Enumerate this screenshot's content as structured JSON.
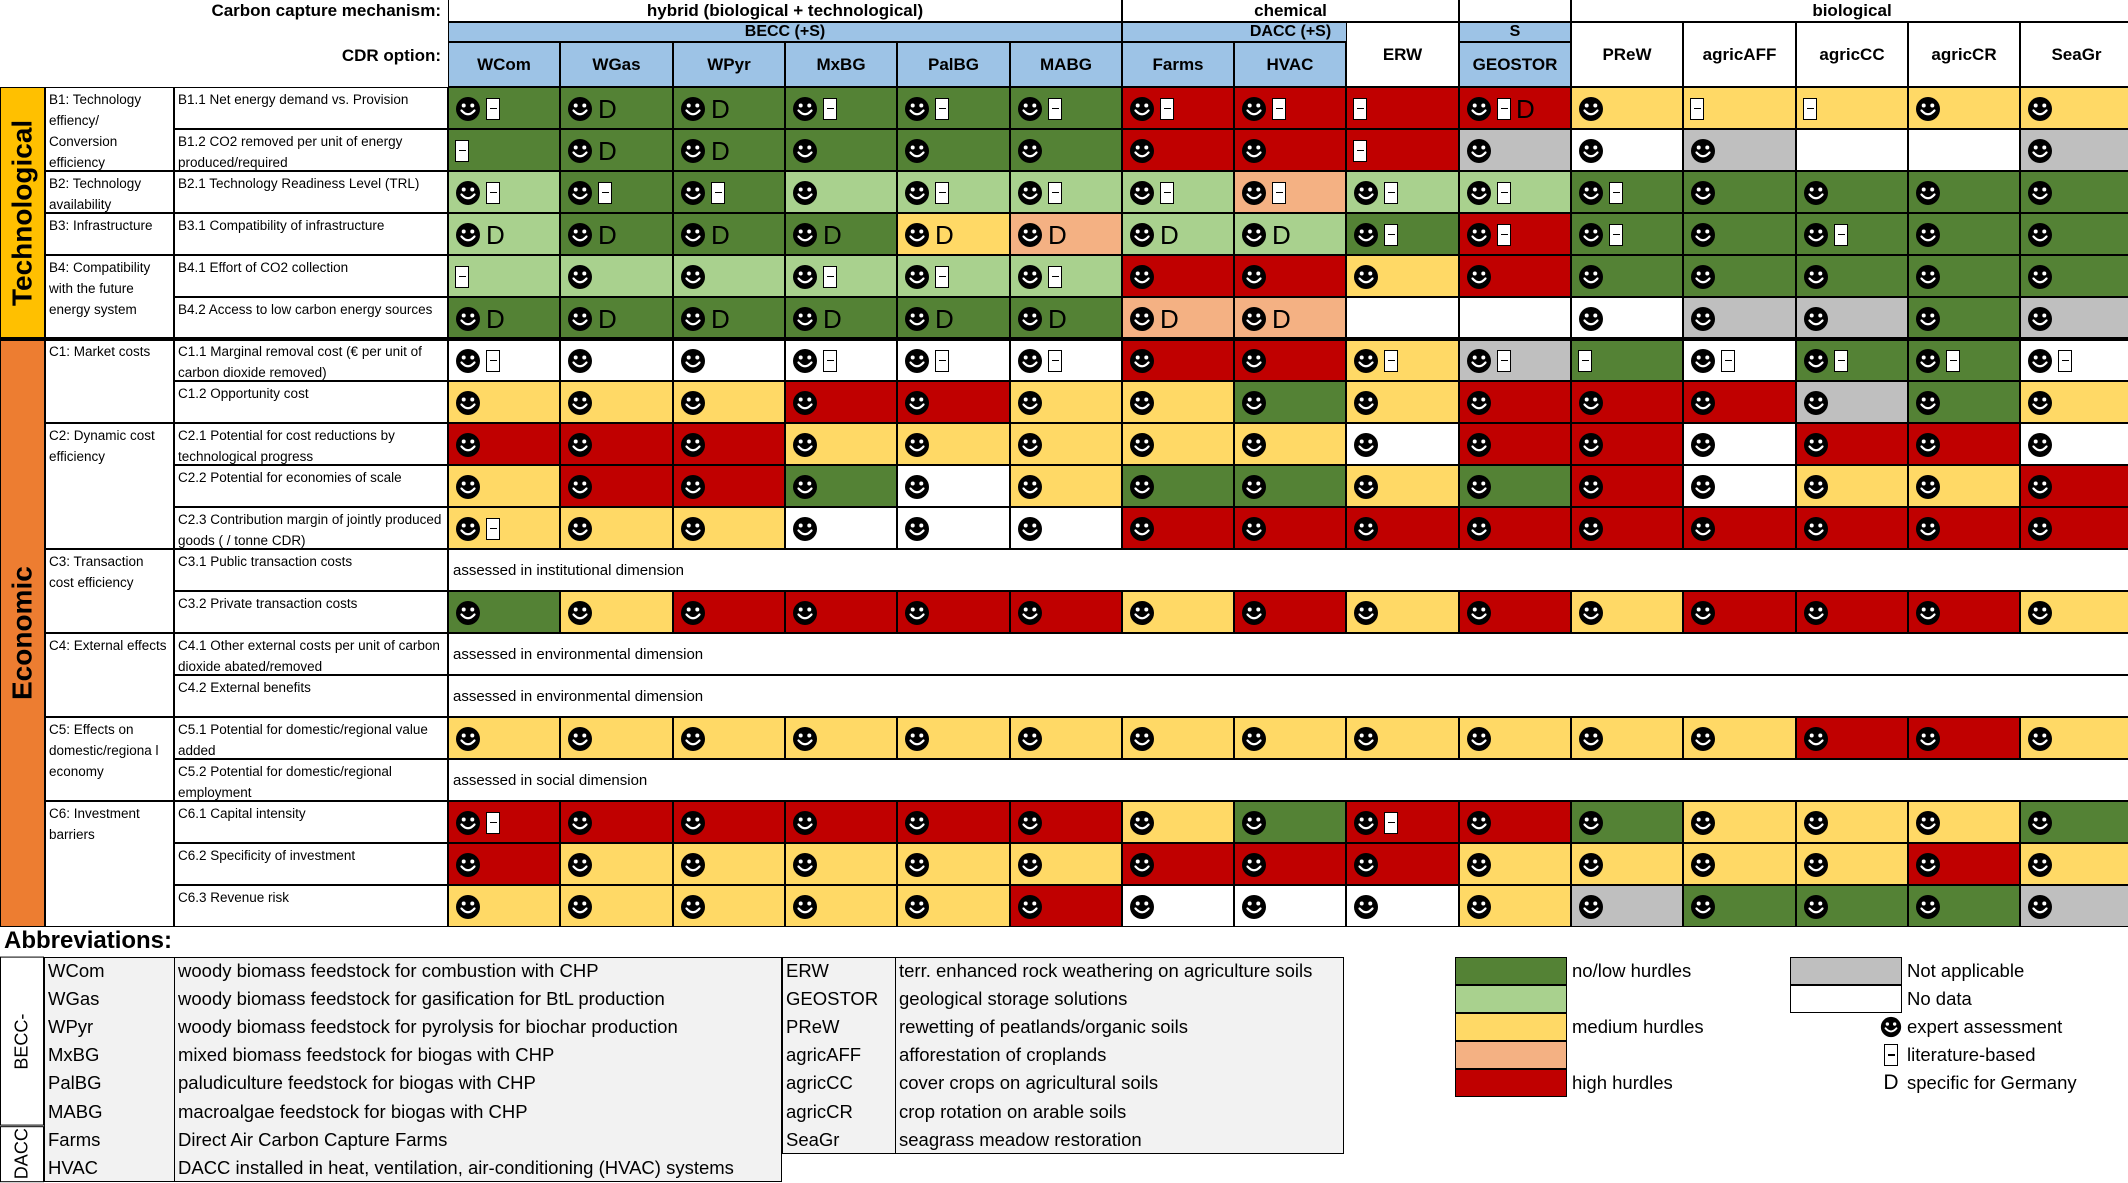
{
  "header": {
    "mech_label": "Carbon capture mechanism:",
    "cdr_label": "CDR option:",
    "groups": [
      {
        "label": "hybrid (biological + technological)",
        "sub": "BECC (+S)",
        "span": [
          0,
          6
        ]
      },
      {
        "label": "chemical",
        "sub": "DACC (+S)",
        "span": [
          6,
          9
        ]
      },
      {
        "label": "",
        "sub": "S",
        "span": [
          9,
          10
        ]
      },
      {
        "label": "biological",
        "sub": "",
        "span": [
          10,
          15
        ]
      }
    ],
    "options": [
      "WCom",
      "WGas",
      "WPyr",
      "MxBG",
      "PalBG",
      "MABG",
      "Farms",
      "HVAC",
      "ERW",
      "GEOSTOR",
      "PReW",
      "agricAFF",
      "agricCC",
      "agricCR",
      "SeaGr"
    ]
  },
  "palette": {
    "G": "#548235",
    "L": "#a9d18e",
    "Y": "#ffd966",
    "O": "#f4b183",
    "R": "#c00000",
    "A": "#bfbfbf",
    "W": "#ffffff",
    "header_blue": "#9dc3e6",
    "tech_band": "#ffc000",
    "econ_band": "#ed7d31"
  },
  "dimensions": [
    {
      "label": "Technological"
    },
    {
      "label": "Economic"
    }
  ],
  "criteria": [
    {
      "label": "B1: Technology effiency/ Conversion efficiency"
    },
    {
      "label": "B2: Technology availability"
    },
    {
      "label": "B3: Infrastructure"
    },
    {
      "label": "B4: Compatibility with the future energy system"
    },
    {
      "label": "C1: Market costs"
    },
    {
      "label": "C2: Dynamic cost efficiency"
    },
    {
      "label": "C3: Transaction cost efficiency"
    },
    {
      "label": "C4: External effects"
    },
    {
      "label": "C5: Effects on domestic/regiona l economy"
    },
    {
      "label": "C6: Investment barriers"
    }
  ],
  "rows": [
    {
      "label": "B1.1 Net energy demand vs. Provision",
      "colors": "GGGGGGRRRRYYYYY",
      "marks": [
        "EL",
        "ED",
        "ED",
        "EL",
        "EL",
        "EL",
        "EL",
        "EL",
        "L",
        "ELD",
        "E",
        "L",
        "L",
        "E",
        "E"
      ]
    },
    {
      "label": "B1.2 CO2 removed per unit of energy produced/required",
      "colors": "GGGGGGRRRAWAWWA",
      "marks": [
        "L",
        "ED",
        "ED",
        "E",
        "E",
        "E",
        "E",
        "E",
        "L",
        "E",
        "E",
        "E",
        "",
        "",
        "E"
      ]
    },
    {
      "label": "B2.1 Technology Readiness Level (TRL)",
      "colors": "LGGLLLLOLLGGGGG",
      "marks": [
        "EL",
        "EL",
        "EL",
        "E",
        "EL",
        "EL",
        "EL",
        "EL",
        "EL",
        "EL",
        "EL",
        "E",
        "E",
        "E",
        "E"
      ]
    },
    {
      "label": "B3.1 Compatibility of infrastructure",
      "colors": "LGGGYOLLGRGGGGG",
      "marks": [
        "ED",
        "ED",
        "ED",
        "ED",
        "ED",
        "ED",
        "ED",
        "ED",
        "EL",
        "EL",
        "EL",
        "E",
        "EL",
        "E",
        "E"
      ]
    },
    {
      "label": "B4.1 Effort of CO2 collection",
      "colors": "LLLLLLRRYRGGGGG",
      "marks": [
        "L",
        "E",
        "E",
        "EL",
        "EL",
        "EL",
        "E",
        "E",
        "E",
        "E",
        "E",
        "E",
        "E",
        "E",
        "E"
      ]
    },
    {
      "label": "B4.2 Access to low carbon energy sources",
      "colors": "GGGGGGOOWWWAAGA",
      "marks": [
        "ED",
        "ED",
        "ED",
        "ED",
        "ED",
        "ED",
        "ED",
        "ED",
        "",
        "",
        "E",
        "E",
        "E",
        "E",
        "E"
      ]
    },
    {
      "label": "C1.1 Marginal removal cost (€ per unit of carbon dioxide removed)",
      "colors": "WWWWWWRRYAGWGGW",
      "marks": [
        "EL",
        "E",
        "E",
        "EL",
        "EL",
        "EL",
        "E",
        "E",
        "EL",
        "EL",
        "L",
        "EL",
        "EL",
        "EL",
        "EL"
      ]
    },
    {
      "label": "C1.2 Opportunity cost",
      "colors": "YYYRRYYGYRRRAGY",
      "marks": [
        "E",
        "E",
        "E",
        "E",
        "E",
        "E",
        "E",
        "E",
        "E",
        "E",
        "E",
        "E",
        "E",
        "E",
        "E"
      ]
    },
    {
      "label": "C2.1 Potential for cost reductions by technological progress",
      "colors": "RRRYYYYYWRRWRRW",
      "marks": [
        "E",
        "E",
        "E",
        "E",
        "E",
        "E",
        "E",
        "E",
        "E",
        "E",
        "E",
        "E",
        "E",
        "E",
        "E"
      ]
    },
    {
      "label": "C2.2 Potential for economies of scale",
      "colors": "YRRGWYGGYGRWYYR",
      "marks": [
        "E",
        "E",
        "E",
        "E",
        "E",
        "E",
        "E",
        "E",
        "E",
        "E",
        "E",
        "E",
        "E",
        "E",
        "E"
      ]
    },
    {
      "label": "C2.3 Contribution margin of jointly produced goods ( / tonne CDR)",
      "colors": "YYYWWWRRRRRRRRR",
      "marks": [
        "EL",
        "E",
        "E",
        "E",
        "E",
        "E",
        "E",
        "E",
        "E",
        "E",
        "E",
        "E",
        "E",
        "E",
        "E"
      ]
    },
    {
      "label": "C3.1 Public transaction costs",
      "note": "assessed in institutional dimension"
    },
    {
      "label": "C3.2 Private transaction costs",
      "colors": "GYRRRRYRYRYRRRY",
      "marks": [
        "E",
        "E",
        "E",
        "E",
        "E",
        "E",
        "E",
        "E",
        "E",
        "E",
        "E",
        "E",
        "E",
        "E",
        "E"
      ]
    },
    {
      "label": "C4.1 Other external costs per unit of carbon dioxide abated/removed",
      "note": "assessed in environmental dimension"
    },
    {
      "label": "C4.2 External benefits",
      "note": "assessed in environmental dimension"
    },
    {
      "label": "C5.1 Potential for domestic/regional value added",
      "colors": "YYYYYYYYYYYYRRY",
      "marks": [
        "E",
        "E",
        "E",
        "E",
        "E",
        "E",
        "E",
        "E",
        "E",
        "E",
        "E",
        "E",
        "E",
        "E",
        "E"
      ]
    },
    {
      "label": "C5.2 Potential for domestic/regional employment",
      "note": "assessed in social dimension"
    },
    {
      "label": "C6.1 Capital intensity",
      "colors": "RRRRRRYGRRGYYYG",
      "marks": [
        "EL",
        "E",
        "E",
        "E",
        "E",
        "E",
        "E",
        "E",
        "EL",
        "E",
        "E",
        "E",
        "E",
        "E",
        "E"
      ]
    },
    {
      "label": "C6.2 Specificity of investment",
      "colors": "RYYYYYRRRYYYYRY",
      "marks": [
        "E",
        "E",
        "E",
        "E",
        "E",
        "E",
        "E",
        "E",
        "E",
        "E",
        "E",
        "E",
        "E",
        "E",
        "E"
      ]
    },
    {
      "label": "C6.3 Revenue risk",
      "colors": "YYYYYRWWWYAGGGA",
      "marks": [
        "E",
        "E",
        "E",
        "E",
        "E",
        "E",
        "E",
        "E",
        "E",
        "E",
        "E",
        "E",
        "E",
        "E",
        "E"
      ]
    }
  ],
  "abbreviations": {
    "title": "Abbreviations:",
    "group_labels": [
      "BECC-",
      "DACC"
    ],
    "left": [
      {
        "code": "WCom",
        "text": "woody biomass feedstock for combustion with CHP"
      },
      {
        "code": "WGas",
        "text": "woody biomass feedstock for gasification for BtL production"
      },
      {
        "code": "WPyr",
        "text": "woody biomass feedstock for pyrolysis for biochar production"
      },
      {
        "code": "MxBG",
        "text": "mixed biomass feedstock for biogas with CHP"
      },
      {
        "code": "PalBG",
        "text": "paludiculture feedstock for biogas with CHP"
      },
      {
        "code": "MABG",
        "text": "macroalgae feedstock for biogas with CHP"
      },
      {
        "code": "Farms",
        "text": "Direct Air Carbon Capture Farms"
      },
      {
        "code": "HVAC",
        "text": "DACC installed in heat, ventilation, air-conditioning (HVAC) systems"
      }
    ],
    "right": [
      {
        "code": "ERW",
        "text": "terr. enhanced rock weathering on agriculture soils"
      },
      {
        "code": "GEOSTOR",
        "text": "geological storage solutions"
      },
      {
        "code": "PReW",
        "text": "rewetting of peatlands/organic soils"
      },
      {
        "code": "agricAFF",
        "text": "afforestation of croplands"
      },
      {
        "code": "agricCC",
        "text": "cover crops on agricultural soils"
      },
      {
        "code": "agricCR",
        "text": "crop rotation on arable soils"
      },
      {
        "code": "SeaGr",
        "text": "seagrass meadow restoration"
      }
    ]
  },
  "legend": {
    "hurdles": [
      {
        "color": "G",
        "label": "no/low hurdles"
      },
      {
        "color": "L",
        "label": ""
      },
      {
        "color": "Y",
        "label": "medium hurdles"
      },
      {
        "color": "O",
        "label": ""
      },
      {
        "color": "R",
        "label": "high hurdles"
      }
    ],
    "other": [
      {
        "color": "A",
        "label": "Not applicable"
      },
      {
        "color": "W",
        "label": "No data"
      }
    ],
    "marks": [
      {
        "icon": "smiley-icon",
        "label": "expert assessment"
      },
      {
        "icon": "literature-icon",
        "label": "literature-based"
      },
      {
        "icon": "d-letter-icon",
        "label": "specific for Germany"
      }
    ]
  }
}
